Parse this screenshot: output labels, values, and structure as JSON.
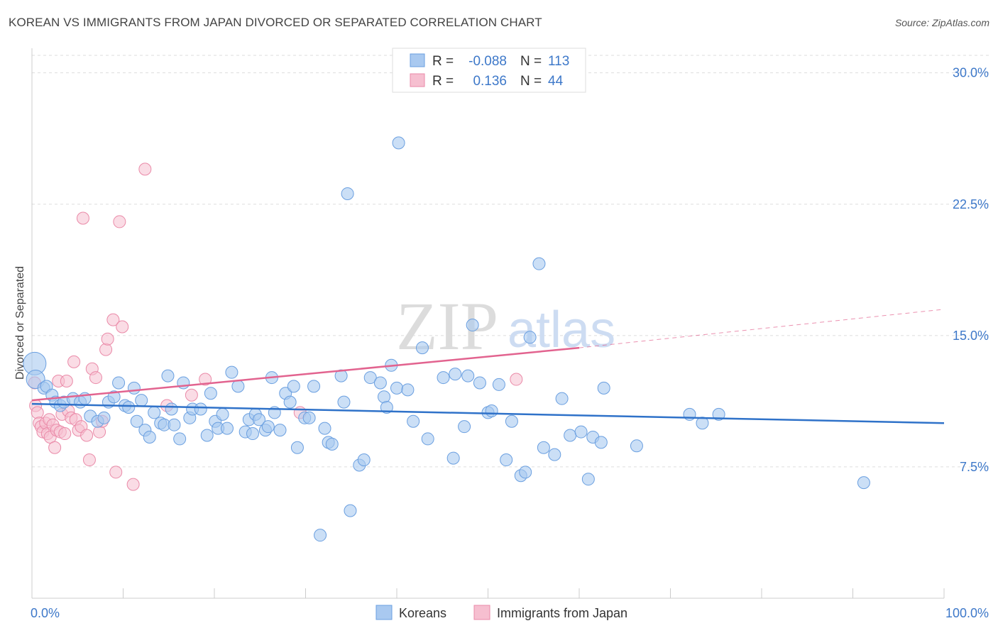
{
  "title": "KOREAN VS IMMIGRANTS FROM JAPAN DIVORCED OR SEPARATED CORRELATION CHART",
  "source": "Source: ZipAtlas.com",
  "watermark": {
    "zip": "ZIP",
    "atlas": "atlas"
  },
  "legend_box": {
    "rows": [
      {
        "r_label": "R =",
        "r_value": "-0.088",
        "n_label": "N =",
        "n_value": "113"
      },
      {
        "r_label": "R =",
        "r_value": "0.136",
        "n_label": "N =",
        "n_value": "44"
      }
    ]
  },
  "colors": {
    "koreans_fill": "#a9c9f0",
    "koreans_stroke": "#6a9fe0",
    "koreans_line": "#2f72c9",
    "japan_fill": "#f6bfd0",
    "japan_stroke": "#ea8aa8",
    "japan_line": "#e2638f",
    "axis_label": "#3d78c9",
    "grid": "#dddddd"
  },
  "chart_data": {
    "type": "scatter",
    "title": "KOREAN VS IMMIGRANTS FROM JAPAN DIVORCED OR SEPARATED CORRELATION CHART",
    "xlabel": "",
    "ylabel": "Divorced or Separated",
    "xlim": [
      0,
      100
    ],
    "ylim": [
      0,
      31
    ],
    "x_tick_labels": [
      "0.0%",
      "100.0%"
    ],
    "y_ticks": [
      7.5,
      15.0,
      22.5,
      30.0
    ],
    "y_tick_labels": [
      "7.5%",
      "15.0%",
      "22.5%",
      "30.0%"
    ],
    "grid": "horizontal dashed",
    "legend_position": "bottom-center",
    "series": [
      {
        "name": "Koreans",
        "r": -0.088,
        "n": 113,
        "trend": {
          "x": [
            0,
            100
          ],
          "y": [
            11.1,
            10.0
          ],
          "dashed_from": null
        },
        "points": [
          [
            0.3,
            13.4
          ],
          [
            0.4,
            12.5
          ],
          [
            1.3,
            12.0
          ],
          [
            1.6,
            12.1
          ],
          [
            2.2,
            11.6
          ],
          [
            2.6,
            11.2
          ],
          [
            3.1,
            11.0
          ],
          [
            3.5,
            11.2
          ],
          [
            4.5,
            11.4
          ],
          [
            5.3,
            11.2
          ],
          [
            5.8,
            11.4
          ],
          [
            6.4,
            10.4
          ],
          [
            7.2,
            10.1
          ],
          [
            7.9,
            10.3
          ],
          [
            8.4,
            11.2
          ],
          [
            9.0,
            11.5
          ],
          [
            9.5,
            12.3
          ],
          [
            10.2,
            11.0
          ],
          [
            10.6,
            10.9
          ],
          [
            11.2,
            12.0
          ],
          [
            11.5,
            10.1
          ],
          [
            12.0,
            11.3
          ],
          [
            12.4,
            9.6
          ],
          [
            12.9,
            9.2
          ],
          [
            13.4,
            10.6
          ],
          [
            14.1,
            10.0
          ],
          [
            14.5,
            9.9
          ],
          [
            14.9,
            12.7
          ],
          [
            15.3,
            10.8
          ],
          [
            15.6,
            9.9
          ],
          [
            16.2,
            9.1
          ],
          [
            16.6,
            12.3
          ],
          [
            17.3,
            10.3
          ],
          [
            17.6,
            10.8
          ],
          [
            18.5,
            10.8
          ],
          [
            19.2,
            9.3
          ],
          [
            19.6,
            11.7
          ],
          [
            20.1,
            10.1
          ],
          [
            20.4,
            9.7
          ],
          [
            20.9,
            10.5
          ],
          [
            21.4,
            9.7
          ],
          [
            21.9,
            12.9
          ],
          [
            22.6,
            12.1
          ],
          [
            23.4,
            9.5
          ],
          [
            23.8,
            10.2
          ],
          [
            24.2,
            9.4
          ],
          [
            24.5,
            10.5
          ],
          [
            24.9,
            10.2
          ],
          [
            25.6,
            9.6
          ],
          [
            25.9,
            9.8
          ],
          [
            26.3,
            12.6
          ],
          [
            26.6,
            10.6
          ],
          [
            27.2,
            9.6
          ],
          [
            27.8,
            11.7
          ],
          [
            28.3,
            11.2
          ],
          [
            28.7,
            12.1
          ],
          [
            29.1,
            8.6
          ],
          [
            29.9,
            10.3
          ],
          [
            30.4,
            10.3
          ],
          [
            30.9,
            12.1
          ],
          [
            31.6,
            3.6
          ],
          [
            32.1,
            9.7
          ],
          [
            32.5,
            8.9
          ],
          [
            32.9,
            8.8
          ],
          [
            33.9,
            12.7
          ],
          [
            34.2,
            11.2
          ],
          [
            34.6,
            23.1
          ],
          [
            34.9,
            5.0
          ],
          [
            35.9,
            7.6
          ],
          [
            36.4,
            7.9
          ],
          [
            37.1,
            12.6
          ],
          [
            38.2,
            12.3
          ],
          [
            38.6,
            11.5
          ],
          [
            38.9,
            10.9
          ],
          [
            39.4,
            13.3
          ],
          [
            40.2,
            26.0
          ],
          [
            40.0,
            12.0
          ],
          [
            41.2,
            11.9
          ],
          [
            41.8,
            10.1
          ],
          [
            42.8,
            14.3
          ],
          [
            43.4,
            9.1
          ],
          [
            45.1,
            12.6
          ],
          [
            46.2,
            8.0
          ],
          [
            46.4,
            12.8
          ],
          [
            47.4,
            9.8
          ],
          [
            47.8,
            12.7
          ],
          [
            48.3,
            15.6
          ],
          [
            49.1,
            12.3
          ],
          [
            50.0,
            10.6
          ],
          [
            50.4,
            10.7
          ],
          [
            51.2,
            12.2
          ],
          [
            52.0,
            7.9
          ],
          [
            52.6,
            10.1
          ],
          [
            53.6,
            7.0
          ],
          [
            54.1,
            7.2
          ],
          [
            54.6,
            14.9
          ],
          [
            55.6,
            19.1
          ],
          [
            56.1,
            8.6
          ],
          [
            57.3,
            8.2
          ],
          [
            58.1,
            11.4
          ],
          [
            59.0,
            9.3
          ],
          [
            60.2,
            9.5
          ],
          [
            61.0,
            6.8
          ],
          [
            61.5,
            9.2
          ],
          [
            62.4,
            8.9
          ],
          [
            62.7,
            12.0
          ],
          [
            66.3,
            8.7
          ],
          [
            72.1,
            10.5
          ],
          [
            73.5,
            10.0
          ],
          [
            75.3,
            10.5
          ],
          [
            91.2,
            6.6
          ]
        ]
      },
      {
        "name": "Immigrants from Japan",
        "r": 0.136,
        "n": 44,
        "trend": {
          "x": [
            0,
            60,
            100
          ],
          "y": [
            11.3,
            14.3,
            16.5
          ],
          "dashed_from": 60
        },
        "points": [
          [
            0.3,
            12.3
          ],
          [
            0.4,
            11.0
          ],
          [
            0.6,
            10.6
          ],
          [
            0.8,
            10.0
          ],
          [
            1.0,
            9.8
          ],
          [
            1.2,
            9.5
          ],
          [
            1.5,
            10.0
          ],
          [
            1.7,
            9.4
          ],
          [
            1.9,
            10.2
          ],
          [
            2.0,
            9.2
          ],
          [
            2.3,
            9.9
          ],
          [
            2.5,
            8.6
          ],
          [
            2.7,
            9.6
          ],
          [
            2.9,
            12.4
          ],
          [
            3.1,
            9.5
          ],
          [
            3.3,
            10.5
          ],
          [
            3.6,
            9.4
          ],
          [
            3.8,
            12.4
          ],
          [
            4.0,
            10.7
          ],
          [
            4.3,
            10.3
          ],
          [
            4.6,
            13.5
          ],
          [
            4.8,
            10.2
          ],
          [
            5.1,
            9.6
          ],
          [
            5.4,
            9.8
          ],
          [
            5.6,
            21.7
          ],
          [
            6.0,
            9.3
          ],
          [
            6.3,
            7.9
          ],
          [
            6.6,
            13.1
          ],
          [
            7.0,
            12.6
          ],
          [
            7.4,
            9.5
          ],
          [
            7.7,
            10.1
          ],
          [
            8.1,
            14.2
          ],
          [
            8.3,
            14.8
          ],
          [
            8.9,
            15.9
          ],
          [
            9.2,
            7.2
          ],
          [
            9.6,
            21.5
          ],
          [
            9.9,
            15.5
          ],
          [
            11.1,
            6.5
          ],
          [
            12.4,
            24.5
          ],
          [
            14.8,
            11.0
          ],
          [
            17.5,
            11.6
          ],
          [
            19.0,
            12.5
          ],
          [
            29.4,
            10.6
          ],
          [
            53.1,
            12.5
          ]
        ]
      }
    ]
  }
}
